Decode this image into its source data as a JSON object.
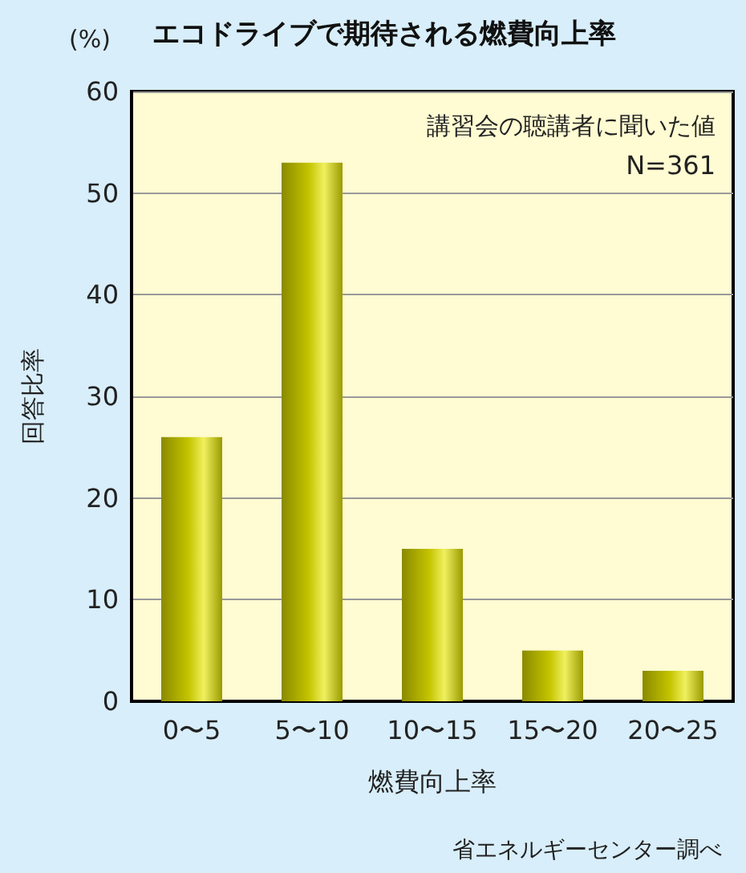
{
  "chart_data": {
    "type": "bar",
    "title": "エコドライブで期待される燃費向上率",
    "xlabel": "燃費向上率",
    "ylabel": "回答比率",
    "annotations": [
      "(%)",
      "講習会の聴講者に聞いた値",
      "N=361",
      "省エネルギーセンター調べ"
    ],
    "categories": [
      "0〜5",
      "5〜10",
      "10〜15",
      "15〜20",
      "20〜25"
    ],
    "values": [
      26,
      53,
      15,
      5,
      3
    ],
    "color": "#c4c400",
    "ylim": [
      0,
      60
    ],
    "yticks": [
      0,
      10,
      20,
      30,
      40,
      50,
      60
    ],
    "grid": "y"
  }
}
